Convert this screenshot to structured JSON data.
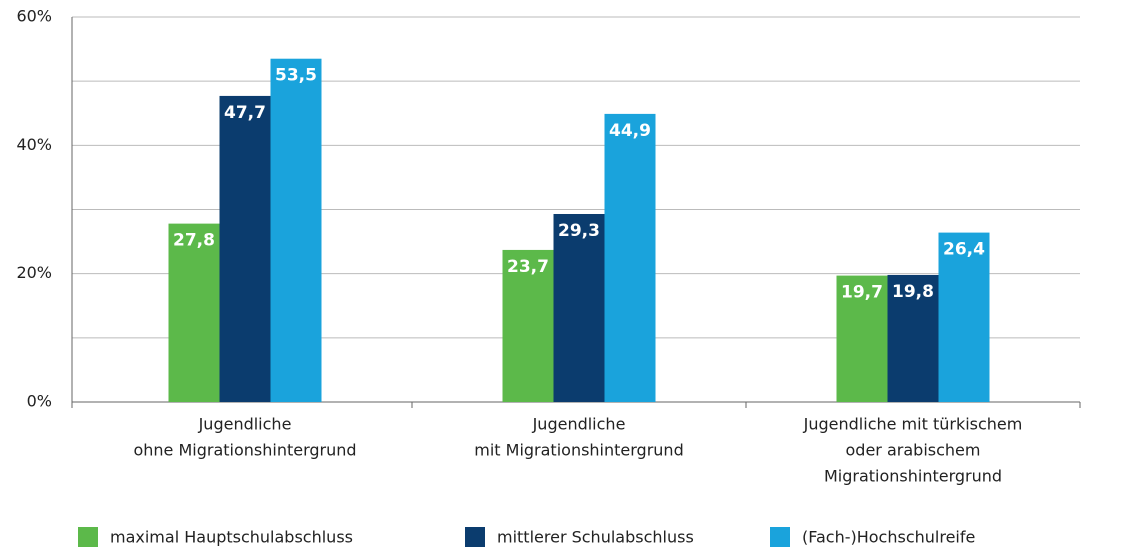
{
  "chart_data": {
    "type": "bar",
    "categories": [
      [
        "Jugendliche",
        "ohne Migrationshintergrund"
      ],
      [
        "Jugendliche",
        "mit Migrationshintergrund"
      ],
      [
        "Jugendliche mit türkischem",
        "oder arabischem",
        "Migrationshintergrund"
      ]
    ],
    "series": [
      {
        "name": "maximal Hauptschulabschluss",
        "color": "#5cb94a",
        "values": [
          27.8,
          23.7,
          19.7
        ],
        "value_labels": [
          "27,8",
          "23,7",
          "19,7"
        ]
      },
      {
        "name": "mittlerer Schulabschluss",
        "color": "#0b3c6e",
        "values": [
          47.7,
          29.3,
          19.8
        ],
        "value_labels": [
          "47,7",
          "29,3",
          "19,8"
        ]
      },
      {
        "name": "(Fach-)Hochschulreife",
        "color": "#1aa3dc",
        "values": [
          53.5,
          44.9,
          26.4
        ],
        "value_labels": [
          "53,5",
          "44,9",
          "26,4"
        ]
      }
    ],
    "ylim": [
      0,
      60
    ],
    "yticks": [
      {
        "value": 0,
        "label": "0%"
      },
      {
        "value": 20,
        "label": "20%"
      },
      {
        "value": 40,
        "label": "40%"
      },
      {
        "value": 60,
        "label": "60%"
      }
    ],
    "minor_yticks": [
      10,
      30,
      50
    ],
    "grid": true,
    "legend": "bottom"
  }
}
